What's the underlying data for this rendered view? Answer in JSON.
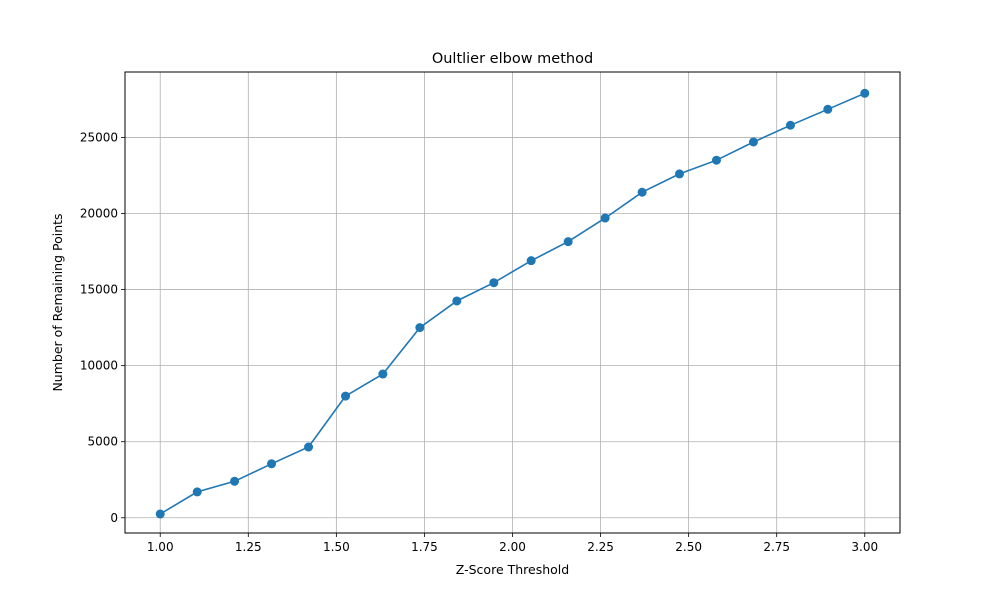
{
  "chart_data": {
    "type": "line",
    "title": "Oultlier elbow method",
    "xlabel": "Z-Score Threshold",
    "ylabel": "Number of Remaining Points",
    "xlim": [
      0.9,
      3.1
    ],
    "ylim": [
      -1000,
      29300
    ],
    "x_ticks": [
      1.0,
      1.25,
      1.5,
      1.75,
      2.0,
      2.25,
      2.5,
      2.75,
      3.0
    ],
    "x_tick_labels": [
      "1.00",
      "1.25",
      "1.50",
      "1.75",
      "2.00",
      "2.25",
      "2.50",
      "2.75",
      "3.00"
    ],
    "y_ticks": [
      0,
      5000,
      10000,
      15000,
      20000,
      25000
    ],
    "y_tick_labels": [
      "0",
      "5000",
      "10000",
      "15000",
      "20000",
      "25000"
    ],
    "grid": true,
    "series": [
      {
        "color": "#1f77b4",
        "marker": "circle",
        "x": [
          1.0,
          1.105,
          1.211,
          1.316,
          1.421,
          1.526,
          1.632,
          1.737,
          1.842,
          1.947,
          2.053,
          2.158,
          2.263,
          2.368,
          2.474,
          2.579,
          2.684,
          2.789,
          2.895,
          3.0
        ],
        "y": [
          250,
          1700,
          2400,
          3550,
          4650,
          8000,
          9450,
          12500,
          14250,
          15450,
          16900,
          18150,
          19700,
          21400,
          22600,
          23500,
          24700,
          25800,
          26850,
          27900
        ]
      }
    ]
  }
}
